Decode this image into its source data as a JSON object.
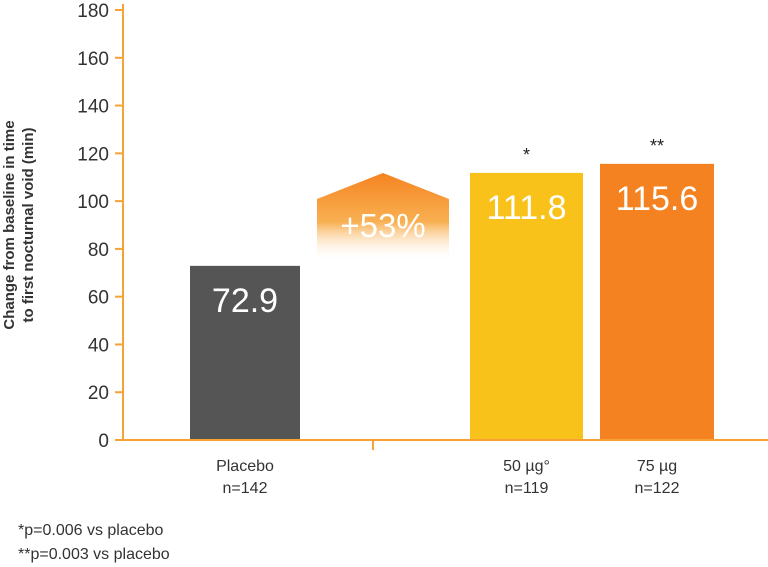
{
  "chart_data": {
    "type": "bar",
    "categories": [
      "Placebo\nn=142",
      "50 µg°\nn=119",
      "75 µg\nn=122"
    ],
    "values": [
      72.9,
      111.8,
      115.6
    ],
    "value_labels": [
      "72.9",
      "111.8",
      "115.6"
    ],
    "significance": [
      "",
      "*",
      "**"
    ],
    "colors": [
      "#555555",
      "#F9C21A",
      "#F58220"
    ],
    "axis_color": "#F7A234",
    "title": "",
    "xlabel": "",
    "ylabel": "Change from baseline in time\nto first nocturnal void (min)",
    "ylim": [
      0,
      180
    ],
    "yticks": [
      0,
      20,
      40,
      60,
      80,
      100,
      120,
      140,
      160,
      180
    ],
    "grid": false,
    "annotation": {
      "text": "+53%",
      "color": "#F7A234"
    }
  },
  "footnotes": [
    "*p=0.006 vs placebo",
    "**p=0.003 vs placebo"
  ]
}
